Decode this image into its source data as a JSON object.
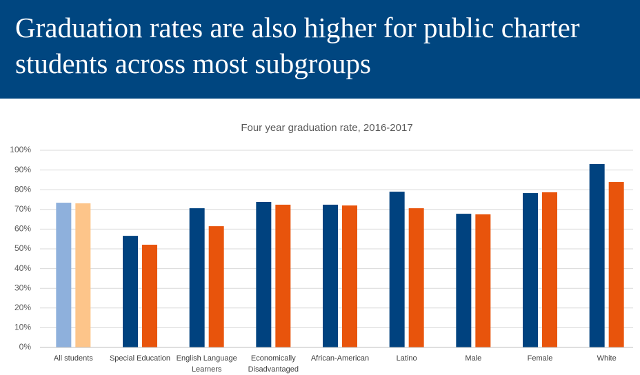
{
  "header": {
    "title": "Graduation rates are also higher for public charter students across most subgroups"
  },
  "chart_data": {
    "type": "bar",
    "title": "Four year graduation rate, 2016-2017",
    "categories": [
      "All students",
      "Special Education",
      "English Language Learners",
      "Economically Disadvantaged",
      "African-American",
      "Latino",
      "Male",
      "Female",
      "White"
    ],
    "series": [
      {
        "color": "#00427f",
        "colors": [
          "#8eb0dc",
          "#00427f",
          "#00427f",
          "#00427f",
          "#00427f",
          "#00427f",
          "#00427f",
          "#00427f",
          "#00427f"
        ],
        "values": [
          73.4,
          56.6,
          70.6,
          73.8,
          72.4,
          79.0,
          67.8,
          78.3,
          93.0
        ]
      },
      {
        "color": "#e8540c",
        "colors": [
          "#fdc58a",
          "#e8540c",
          "#e8540c",
          "#e8540c",
          "#e8540c",
          "#e8540c",
          "#e8540c",
          "#e8540c",
          "#e8540c"
        ],
        "values": [
          73.1,
          52.1,
          61.5,
          72.4,
          72.0,
          70.6,
          67.5,
          78.7,
          83.9
        ]
      }
    ],
    "ylim": [
      0,
      100
    ],
    "yticks": [
      {
        "value": 0,
        "label": "0%"
      },
      {
        "value": 10,
        "label": "10%"
      },
      {
        "value": 20,
        "label": "20%"
      },
      {
        "value": 30,
        "label": "30%"
      },
      {
        "value": 40,
        "label": "40%"
      },
      {
        "value": 50,
        "label": "50%"
      },
      {
        "value": 60,
        "label": "60%"
      },
      {
        "value": 70,
        "label": "70%"
      },
      {
        "value": 80,
        "label": "80%"
      },
      {
        "value": 90,
        "label": "90%"
      },
      {
        "value": 100,
        "label": "100%"
      }
    ],
    "grid": true
  }
}
